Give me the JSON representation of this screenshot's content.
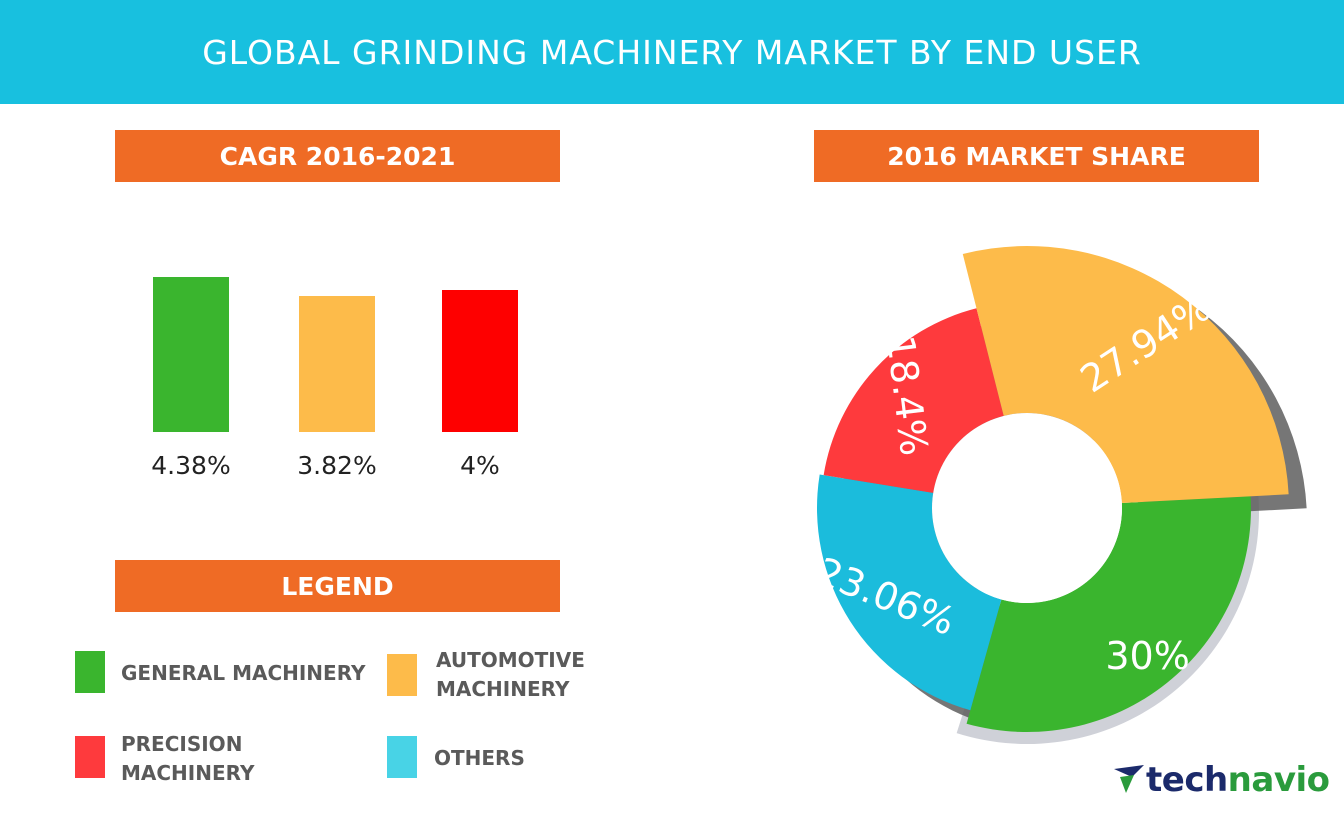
{
  "header": {
    "title": "GLOBAL GRINDING MACHINERY MARKET BY END USER"
  },
  "cagr": {
    "title": "CAGR 2016-2021"
  },
  "share": {
    "title": "2016 MARKET SHARE"
  },
  "legend": {
    "title": "LEGEND",
    "items": [
      {
        "label": "GENERAL MACHINERY",
        "color": "#3ab52e"
      },
      {
        "label": "AUTOMOTIVE MACHINERY",
        "line1": "AUTOMOTIVE",
        "line2": "MACHINERY",
        "color": "#fdbb4a"
      },
      {
        "label": "PRECISION MACHINERY",
        "line1": "PRECISION",
        "line2": "MACHINERY",
        "color": "#fe3a3d"
      },
      {
        "label": "OTHERS",
        "color": "#48d3e6"
      }
    ]
  },
  "logo": {
    "brand": "technavio",
    "part1": "tech",
    "part2": "navio"
  },
  "chart_data": [
    {
      "type": "bar",
      "title": "CAGR 2016-2021",
      "categories": [
        "GENERAL MACHINERY",
        "AUTOMOTIVE MACHINERY",
        "PRECISION MACHINERY"
      ],
      "values": [
        4.38,
        3.82,
        4.0
      ],
      "labels": [
        "4.38%",
        "3.82%",
        "4%"
      ],
      "colors": [
        "#3ab52e",
        "#fdbb4a",
        "#fe0000"
      ],
      "ylim": [
        0,
        5
      ],
      "xlabel": "",
      "ylabel": ""
    },
    {
      "type": "pie",
      "title": "2016 MARKET SHARE",
      "categories": [
        "GENERAL MACHINERY",
        "OTHERS",
        "PRECISION MACHINERY",
        "AUTOMOTIVE MACHINERY"
      ],
      "values": [
        30,
        23.06,
        18.4,
        27.94
      ],
      "labels": [
        "30%",
        "23.06%",
        "18.4%",
        "27.94%"
      ],
      "colors": [
        "#3ab52e",
        "#1bbcdc",
        "#fe3a3d",
        "#fdbb4a"
      ]
    }
  ]
}
